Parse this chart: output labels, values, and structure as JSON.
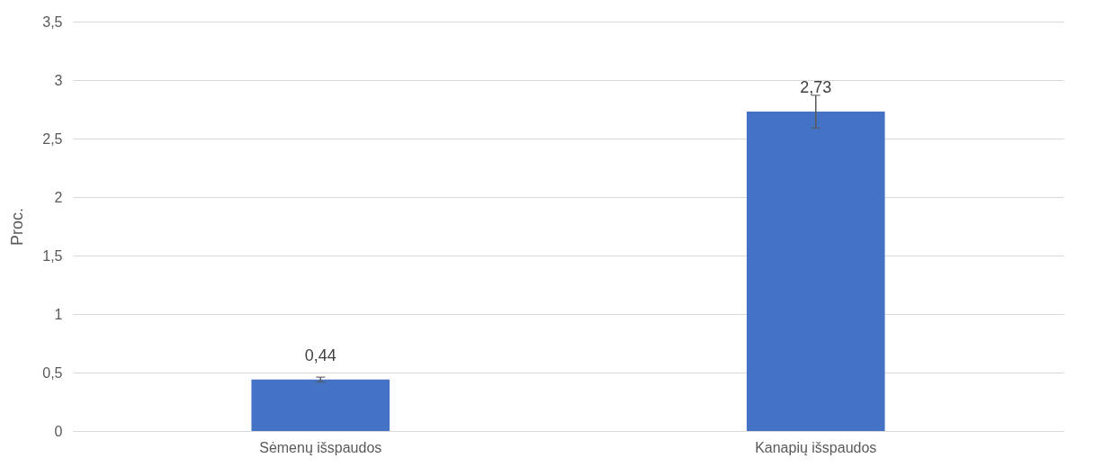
{
  "chart_data": {
    "type": "bar",
    "ylabel": "Proc.",
    "categories": [
      "Sėmenų išspaudos",
      "Kanapių išspaudos"
    ],
    "values": [
      0.44,
      2.73
    ],
    "color": "#4472c4",
    "errors": [
      0.02,
      0.14
    ],
    "value_labels": [
      "0,44",
      "2,73"
    ],
    "ylim": [
      0,
      3.5
    ],
    "yticks": [
      0,
      {
        "value": 0.5,
        "label": "0,5"
      },
      1,
      {
        "value": 1.5,
        "label": "1,5"
      },
      2,
      {
        "value": 2.5,
        "label": "2,5"
      },
      3,
      {
        "value": 3.5,
        "label": "3,5"
      }
    ],
    "grid": "y"
  }
}
